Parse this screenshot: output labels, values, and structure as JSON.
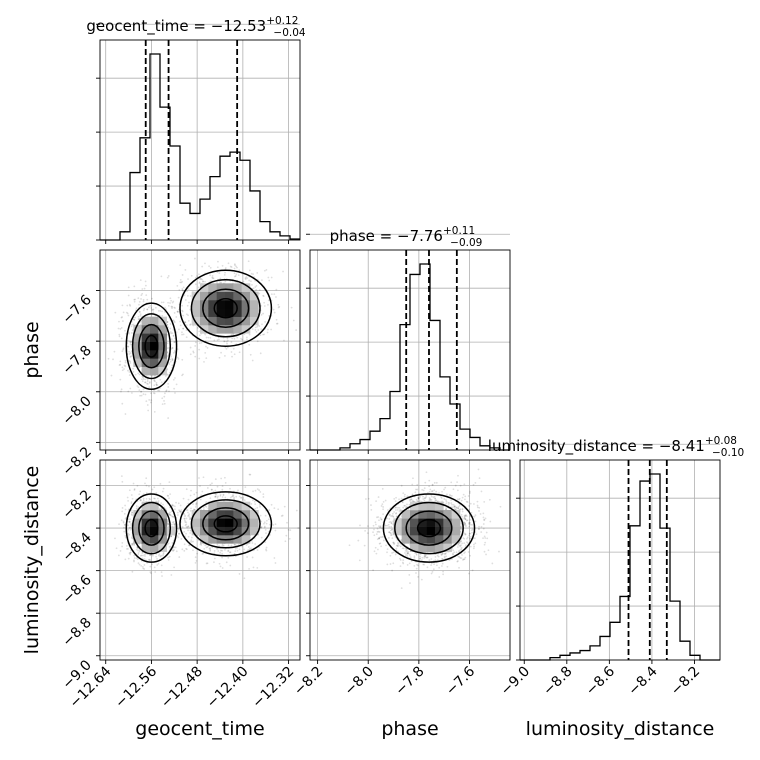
{
  "chart_data": {
    "type": "corner",
    "grid": true,
    "parameters": [
      {
        "name": "geocent_time",
        "xlabel": "geocent_time",
        "title": {
          "prefix": "geocent_time = ",
          "median": "−12.53",
          "plus": "+0.12",
          "minus": "−0.04"
        },
        "range": [
          -12.65,
          -12.3
        ],
        "ticks": [
          -12.64,
          -12.56,
          -12.48,
          -12.4,
          -12.32
        ],
        "tick_labels": [
          "−12.64",
          "−12.56",
          "−12.48",
          "−12.40",
          "−12.32"
        ],
        "quantiles": [
          -12.57,
          -12.53,
          -12.41
        ],
        "hist_bins": [
          -12.65,
          -12.6325,
          -12.615,
          -12.5975,
          -12.58,
          -12.5625,
          -12.545,
          -12.5275,
          -12.51,
          -12.4925,
          -12.475,
          -12.4575,
          -12.44,
          -12.4225,
          -12.405,
          -12.3875,
          -12.37,
          -12.3525,
          -12.335,
          -12.3175,
          -12.3
        ],
        "hist_density": [
          0.0,
          0.0,
          0.04,
          0.33,
          0.5,
          0.91,
          0.65,
          0.46,
          0.18,
          0.13,
          0.2,
          0.31,
          0.41,
          0.43,
          0.39,
          0.24,
          0.09,
          0.04,
          0.02,
          0.005
        ]
      },
      {
        "name": "phase",
        "xlabel": "phase",
        "ylabel": "phase",
        "title": {
          "prefix": "phase = ",
          "median": "−7.76",
          "plus": "+0.11",
          "minus": "−0.09"
        },
        "range": [
          -8.23,
          -7.44
        ],
        "ticks": [
          -8.2,
          -8.0,
          -7.8,
          -7.6
        ],
        "tick_labels": [
          "−8.2",
          "−8.0",
          "−7.8",
          "−7.6"
        ],
        "quantiles": [
          -7.85,
          -7.76,
          -7.65
        ],
        "hist_bins": [
          -8.23,
          -8.1905,
          -8.151,
          -8.1115,
          -8.072,
          -8.0325,
          -7.993,
          -7.9535,
          -7.914,
          -7.8745,
          -7.835,
          -7.7955,
          -7.756,
          -7.7165,
          -7.677,
          -7.6375,
          -7.598,
          -7.5585,
          -7.519,
          -7.4795,
          -7.44
        ],
        "hist_density": [
          0.0,
          0.0,
          0.0,
          0.01,
          0.03,
          0.05,
          0.09,
          0.15,
          0.28,
          0.6,
          0.84,
          0.89,
          0.62,
          0.35,
          0.22,
          0.1,
          0.06,
          0.02,
          0.01,
          0.0
        ]
      },
      {
        "name": "luminosity_distance",
        "xlabel": "luminosity_distance",
        "ylabel": "luminosity_distance",
        "title": {
          "prefix": "luminosity_distance = ",
          "median": "−8.41",
          "plus": "+0.08",
          "minus": "−0.10"
        },
        "range": [
          -9.02,
          -8.08
        ],
        "ticks": [
          -9.0,
          -8.8,
          -8.6,
          -8.4,
          -8.2
        ],
        "tick_labels": [
          "−9.0",
          "−8.8",
          "−8.6",
          "−8.4",
          "−8.2"
        ],
        "quantiles": [
          -8.51,
          -8.41,
          -8.33
        ],
        "hist_bins": [
          -9.02,
          -8.973,
          -8.926,
          -8.879,
          -8.832,
          -8.785,
          -8.738,
          -8.691,
          -8.644,
          -8.597,
          -8.55,
          -8.503,
          -8.456,
          -8.409,
          -8.362,
          -8.315,
          -8.268,
          -8.221,
          -8.174,
          -8.127,
          -8.08
        ],
        "hist_density": [
          0.0,
          0.0,
          0.0,
          0.01,
          0.02,
          0.03,
          0.04,
          0.06,
          0.1,
          0.16,
          0.27,
          0.57,
          0.76,
          0.79,
          0.56,
          0.25,
          0.08,
          0.02,
          0.0,
          0.0
        ]
      }
    ],
    "joint": [
      {
        "x_param": "geocent_time",
        "y_param": "phase",
        "modes": [
          {
            "x": -12.56,
            "y": -7.82,
            "sx": 0.022,
            "sy": 0.085
          },
          {
            "x": -12.43,
            "y": -7.67,
            "sx": 0.04,
            "sy": 0.075
          }
        ]
      },
      {
        "x_param": "geocent_time",
        "y_param": "luminosity_distance",
        "modes": [
          {
            "x": -12.56,
            "y": -8.4,
            "sx": 0.022,
            "sy": 0.08
          },
          {
            "x": -12.43,
            "y": -8.38,
            "sx": 0.04,
            "sy": 0.075
          }
        ]
      },
      {
        "x_param": "phase",
        "y_param": "luminosity_distance",
        "modes": [
          {
            "x": -7.76,
            "y": -8.4,
            "sx": 0.09,
            "sy": 0.08
          }
        ]
      }
    ]
  }
}
